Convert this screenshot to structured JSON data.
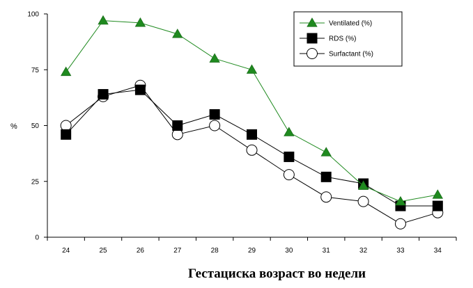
{
  "chart_data": {
    "type": "line",
    "title": "",
    "xlabel": "Гестациска возраст во недели",
    "ylabel": "%",
    "x": [
      24,
      25,
      26,
      27,
      28,
      29,
      30,
      31,
      32,
      33,
      34
    ],
    "ylim": [
      0,
      100
    ],
    "yticks": [
      0,
      25,
      50,
      75,
      100
    ],
    "grid": false,
    "legend_position": "top-right",
    "series": [
      {
        "name": "Ventilated (%)",
        "values": [
          74,
          97,
          96,
          91,
          80,
          75,
          47,
          38,
          23,
          16,
          19
        ],
        "color": "#1f8a1f",
        "marker": "triangle-filled-green"
      },
      {
        "name": "RDS (%)",
        "values": [
          46,
          64,
          66,
          50,
          55,
          46,
          36,
          27,
          24,
          14,
          14
        ],
        "color": "#000000",
        "marker": "square-filled-black"
      },
      {
        "name": "Surfactant (%)",
        "values": [
          50,
          63,
          68,
          46,
          50,
          39,
          28,
          18,
          16,
          6,
          11
        ],
        "color": "#000000",
        "marker": "circle-open"
      }
    ]
  }
}
